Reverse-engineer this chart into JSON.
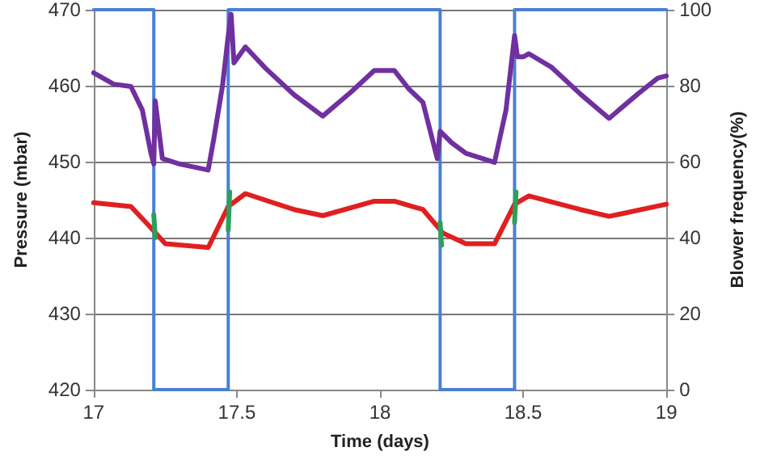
{
  "chart_data": {
    "type": "line",
    "xlabel": "Time (days)",
    "ylabel": "Pressure (mbar)",
    "y2label": "Blower frequency(%)",
    "xlim": [
      17,
      19
    ],
    "xticks": [
      17,
      17.5,
      18,
      18.5,
      19
    ],
    "ylim": [
      420,
      470
    ],
    "yticks": [
      420,
      430,
      440,
      450,
      460,
      470
    ],
    "y2lim": [
      0,
      100
    ],
    "y2ticks": [
      0,
      20,
      40,
      60,
      80,
      100
    ],
    "grid": "y",
    "marker": "none",
    "line_style": "solid",
    "series": [
      {
        "color": "#4a7fd4",
        "axis": "y2",
        "x": [
          17,
          17.21,
          17.21,
          17.47,
          17.47,
          18.21,
          18.21,
          18.47,
          18.47,
          19
        ],
        "values": [
          100,
          100,
          0,
          0,
          100,
          100,
          0,
          0,
          100,
          100
        ]
      },
      {
        "color": "#7030a0",
        "x": [
          17,
          17.07,
          17.13,
          17.17,
          17.2,
          17.21,
          17.215,
          17.24,
          17.3,
          17.4,
          17.42,
          17.45,
          17.47,
          17.48,
          17.49,
          17.53,
          17.6,
          17.7,
          17.8,
          17.9,
          17.98,
          18.05,
          18.1,
          18.15,
          18.2,
          18.21,
          18.25,
          18.3,
          18.4,
          18.44,
          18.47,
          18.48,
          18.5,
          18.52,
          18.6,
          18.7,
          18.8,
          18.9,
          18.97,
          19
        ],
        "values": [
          461.7,
          460.2,
          459.9,
          456.8,
          451.1,
          449.7,
          458,
          450.4,
          449.7,
          448.9,
          453.1,
          460,
          466.6,
          469.4,
          463,
          465.1,
          462.3,
          458.8,
          456,
          459.2,
          462,
          462,
          459.6,
          457.8,
          450.4,
          454,
          452.5,
          451.1,
          449.9,
          456.8,
          466.6,
          463.8,
          463.8,
          464.2,
          462.4,
          458.9,
          455.7,
          458.9,
          461,
          461.3
        ]
      },
      {
        "color": "#e02020",
        "x": [
          17,
          17.13,
          17.2,
          17.25,
          17.4,
          17.47,
          17.53,
          17.7,
          17.8,
          17.98,
          18.05,
          18.15,
          18.22,
          18.3,
          18.4,
          18.47,
          18.52,
          18.7,
          18.8,
          19
        ],
        "values": [
          444.6,
          444.1,
          441.3,
          439.2,
          438.7,
          444.1,
          445.8,
          443.7,
          442.9,
          444.8,
          444.8,
          443.7,
          440.6,
          439.2,
          439.2,
          444.4,
          445.5,
          443.7,
          442.8,
          444.4
        ]
      },
      {
        "color": "#2ca05a",
        "x": [
          17.21,
          17.215,
          17.22,
          17.47,
          17.475,
          17.48,
          18.21,
          18.215,
          18.22,
          18.47,
          18.475
        ],
        "values": [
          443,
          440,
          null,
          441,
          446,
          null,
          442,
          439,
          null,
          442,
          446
        ]
      }
    ]
  }
}
